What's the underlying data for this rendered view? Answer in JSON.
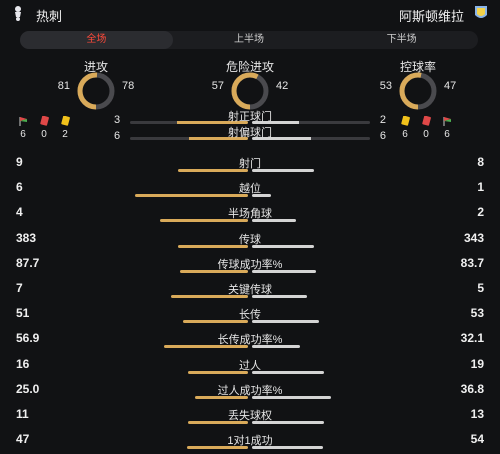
{
  "header": {
    "home_team": "热刺",
    "away_team": "阿斯顿维拉",
    "home_logo_icon": "spurs-cockerel-icon",
    "away_logo_icon": "villa-lion-crest-icon"
  },
  "tabs": [
    {
      "label": "全场",
      "active": true
    },
    {
      "label": "上半场",
      "active": false
    },
    {
      "label": "下半场",
      "active": false
    }
  ],
  "donuts": [
    {
      "title": "进攻",
      "home": "81",
      "away": "78",
      "home_value": 81,
      "away_value": 78
    },
    {
      "title": "危险进攻",
      "home": "57",
      "away": "42",
      "home_value": 57,
      "away_value": 42
    },
    {
      "title": "控球率",
      "home": "53",
      "away": "47",
      "home_value": 53,
      "away_value": 47
    }
  ],
  "cards": {
    "home": [
      {
        "icon": "corner-flag-icon",
        "count": "6"
      },
      {
        "icon": "red-card-icon",
        "count": "0"
      },
      {
        "icon": "yellow-card-icon",
        "count": "2"
      }
    ],
    "away": [
      {
        "icon": "yellow-card-icon",
        "count": "6"
      },
      {
        "icon": "red-card-icon",
        "count": "0"
      },
      {
        "icon": "corner-flag-icon",
        "count": "6"
      }
    ]
  },
  "shots": [
    {
      "label": "射正球门",
      "home": "3",
      "away": "2",
      "home_value": 3,
      "away_value": 2
    },
    {
      "label": "射偏球门",
      "home": "6",
      "away": "6",
      "home_value": 6,
      "away_value": 6
    }
  ],
  "stats": [
    {
      "label": "射门",
      "home": "9",
      "away": "8",
      "home_value": 9,
      "away_value": 8
    },
    {
      "label": "越位",
      "home": "6",
      "away": "1",
      "home_value": 6,
      "away_value": 1
    },
    {
      "label": "半场角球",
      "home": "4",
      "away": "2",
      "home_value": 4,
      "away_value": 2
    },
    {
      "label": "传球",
      "home": "383",
      "away": "343",
      "home_value": 383,
      "away_value": 343
    },
    {
      "label": "传球成功率%",
      "home": "87.7",
      "away": "83.7",
      "home_value": 87.7,
      "away_value": 83.7
    },
    {
      "label": "关键传球",
      "home": "7",
      "away": "5",
      "home_value": 7,
      "away_value": 5
    },
    {
      "label": "长传",
      "home": "51",
      "away": "53",
      "home_value": 51,
      "away_value": 53
    },
    {
      "label": "长传成功率%",
      "home": "56.9",
      "away": "32.1",
      "home_value": 56.9,
      "away_value": 32.1
    },
    {
      "label": "过人",
      "home": "16",
      "away": "19",
      "home_value": 16,
      "away_value": 19
    },
    {
      "label": "过人成功率%",
      "home": "25.0",
      "away": "36.8",
      "home_value": 25.0,
      "away_value": 36.8
    },
    {
      "label": "丢失球权",
      "home": "11",
      "away": "13",
      "home_value": 11,
      "away_value": 13
    },
    {
      "label": "1对1成功",
      "home": "47",
      "away": "54",
      "home_value": 47,
      "away_value": 54
    }
  ],
  "colors": {
    "home_accent": "#d9aa5a",
    "away_accent": "#d4d4d4",
    "donut_track": "#4a4a4e",
    "active_tab": "#ff4a3a",
    "yellow_card": "#f2c21b",
    "red_card": "#e04848"
  }
}
